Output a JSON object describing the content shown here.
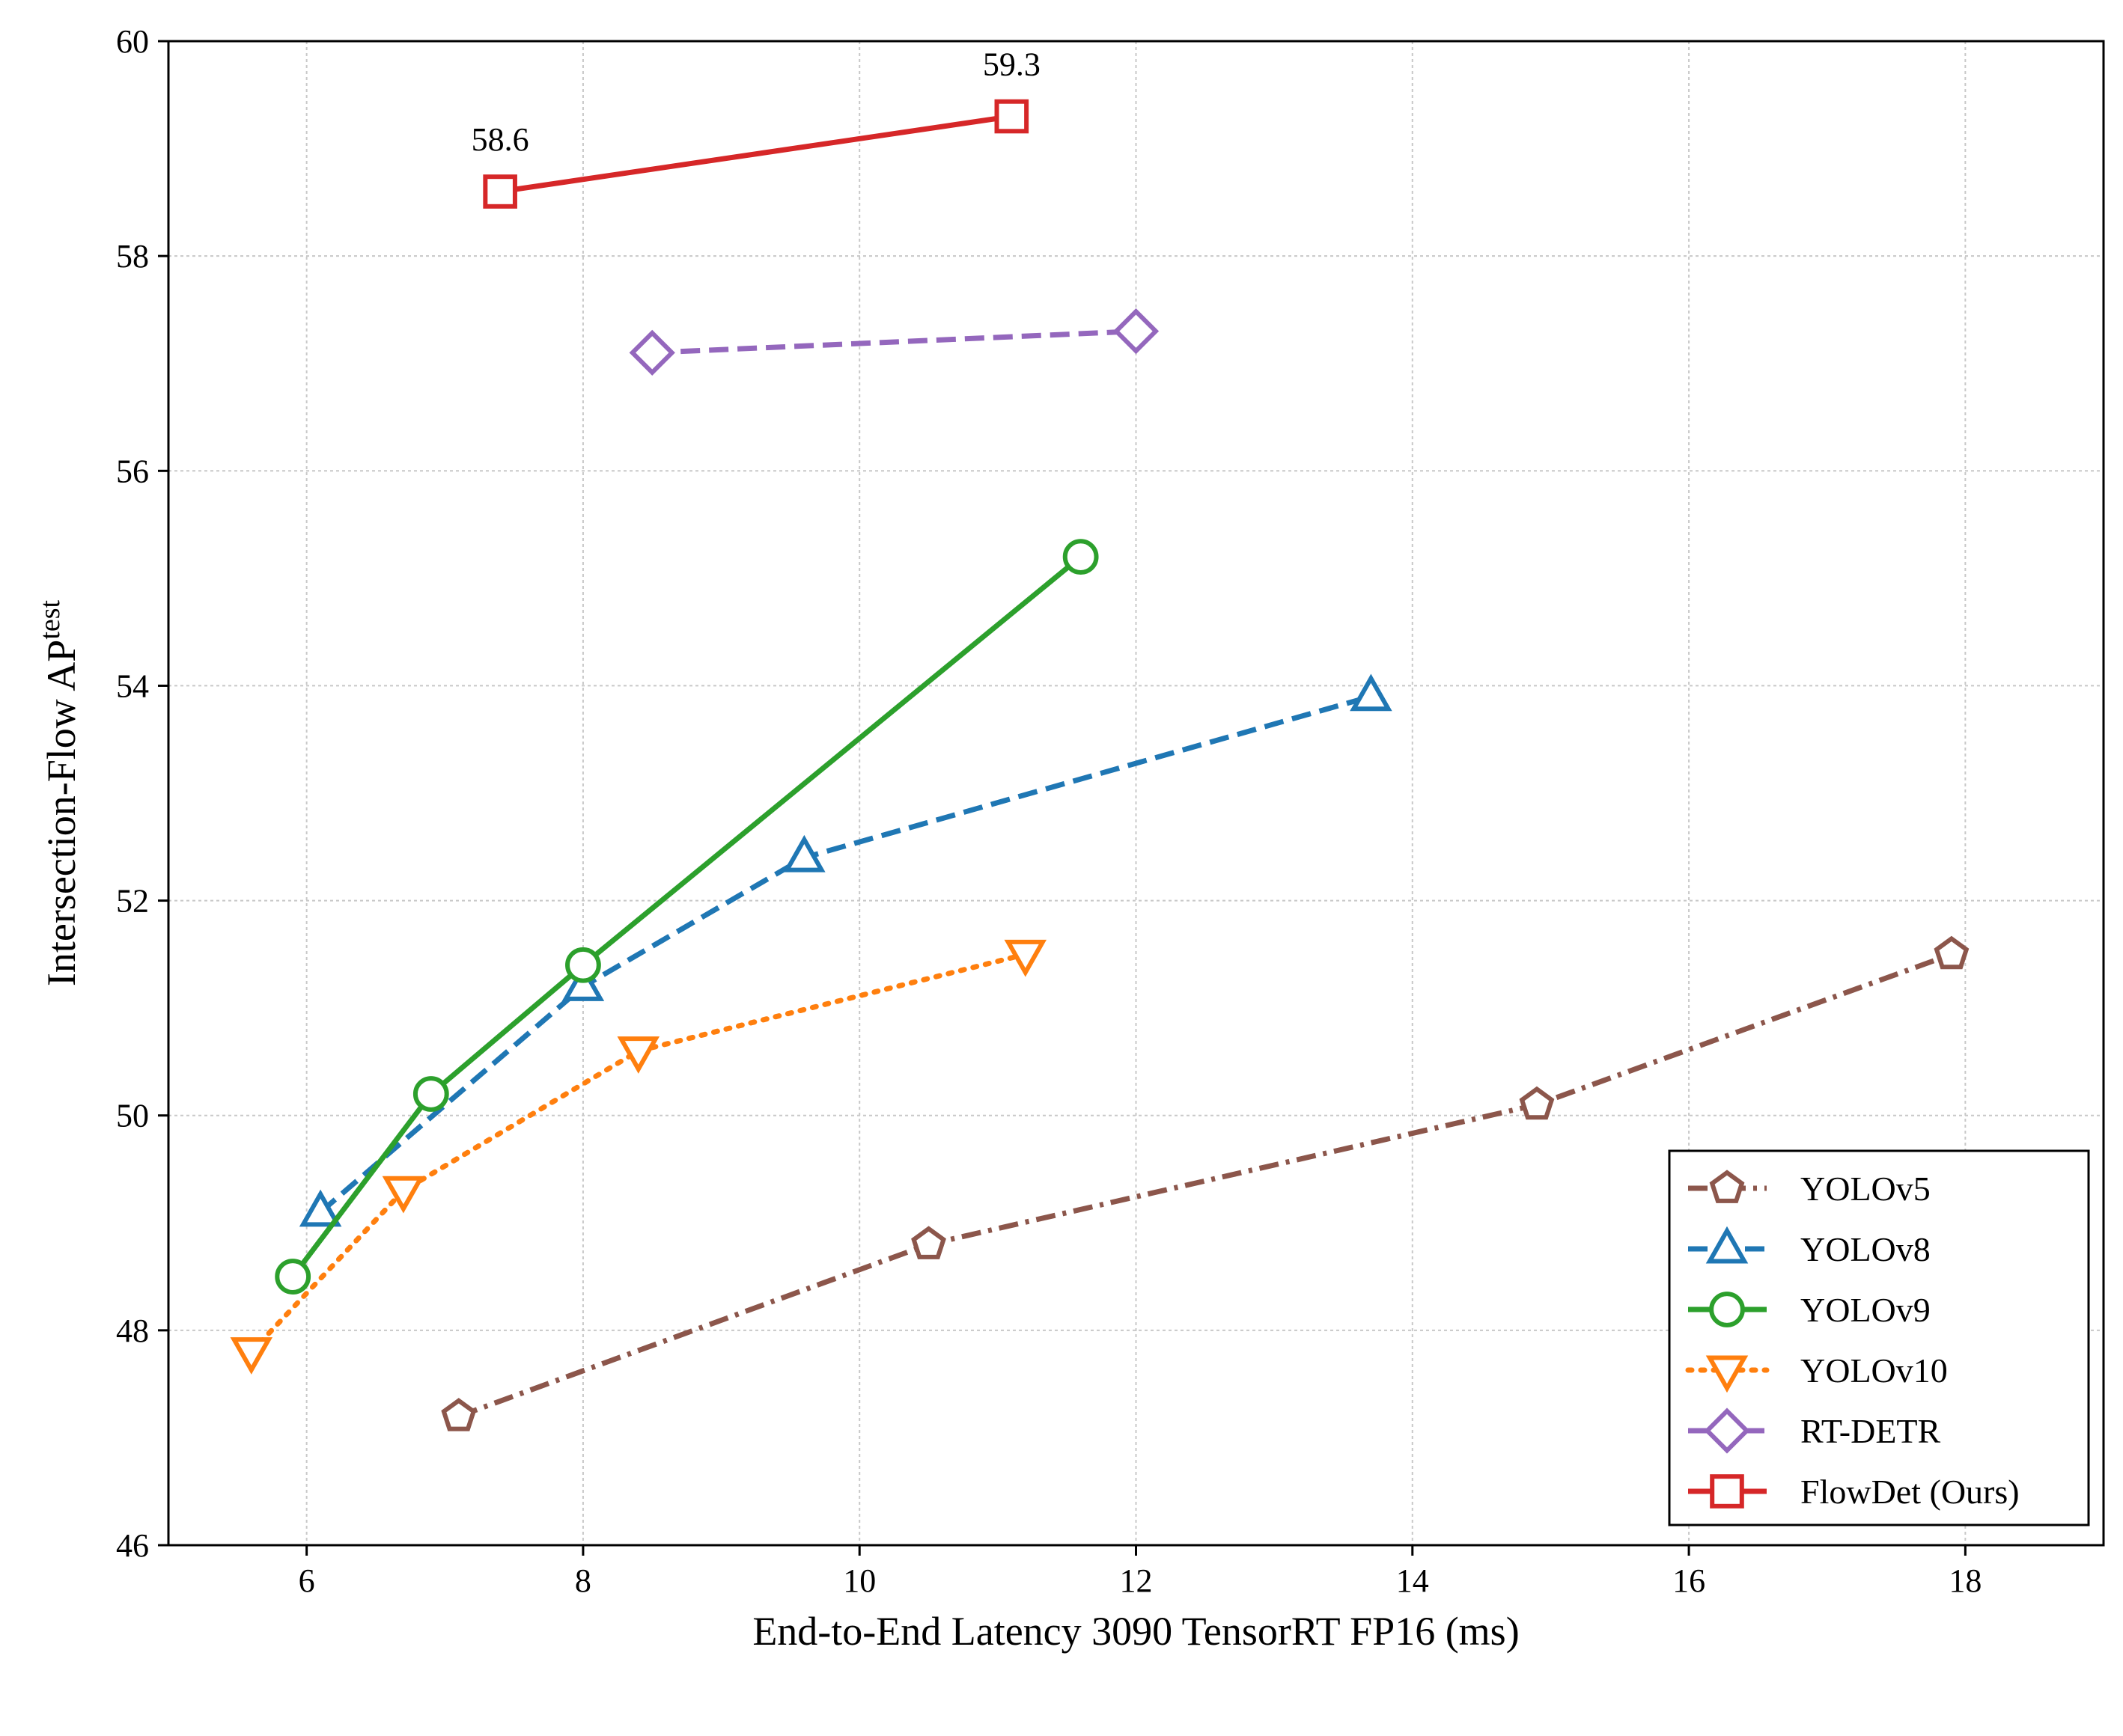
{
  "chart_data": {
    "type": "line",
    "xlabel": "End-to-End Latency 3090 TensorRT FP16 (ms)",
    "ylabel": "Intersection-Flow AP",
    "ylabel_sup": "test",
    "xlim": [
      5,
      19
    ],
    "ylim": [
      46,
      60
    ],
    "xticks": [
      6,
      8,
      10,
      12,
      14,
      16,
      18
    ],
    "yticks": [
      46,
      48,
      50,
      52,
      54,
      56,
      58,
      60
    ],
    "grid": true,
    "legend_position": "bottom-right",
    "series": [
      {
        "name": "YOLOv5",
        "color": "#8c564b",
        "linestyle": "dashdot",
        "marker": "pentagon",
        "x": [
          7.1,
          10.5,
          14.9,
          17.9
        ],
        "y": [
          47.2,
          48.8,
          50.1,
          51.5
        ]
      },
      {
        "name": "YOLOv8",
        "color": "#1f77b4",
        "linestyle": "dashed",
        "marker": "triangle-up",
        "x": [
          6.1,
          8.0,
          9.6,
          13.7
        ],
        "y": [
          49.1,
          51.2,
          52.4,
          53.9
        ]
      },
      {
        "name": "YOLOv9",
        "color": "#2ca02c",
        "linestyle": "solid",
        "marker": "circle",
        "x": [
          5.9,
          6.9,
          8.0,
          11.6
        ],
        "y": [
          48.5,
          50.2,
          51.4,
          55.2
        ]
      },
      {
        "name": "YOLOv10",
        "color": "#ff7f0e",
        "linestyle": "dotted",
        "marker": "triangle-down",
        "x": [
          5.6,
          6.7,
          8.4,
          11.2
        ],
        "y": [
          47.8,
          49.3,
          50.6,
          51.5
        ]
      },
      {
        "name": "RT-DETR",
        "color": "#9467bd",
        "linestyle": "dashed",
        "marker": "diamond",
        "x": [
          8.5,
          12.0
        ],
        "y": [
          57.1,
          57.3
        ]
      },
      {
        "name": "FlowDet (Ours)",
        "color": "#d62728",
        "linestyle": "solid",
        "marker": "square",
        "x": [
          7.4,
          11.1
        ],
        "y": [
          58.6,
          59.3
        ]
      }
    ],
    "annotations": [
      {
        "text": "58.6",
        "x": 7.4,
        "y": 58.6
      },
      {
        "text": "59.3",
        "x": 11.1,
        "y": 59.3
      }
    ]
  }
}
